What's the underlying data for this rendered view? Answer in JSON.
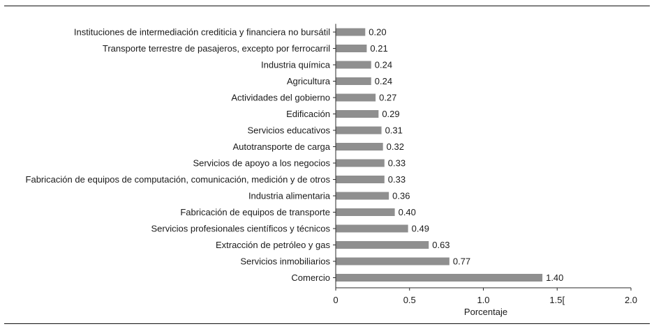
{
  "chart_data": {
    "type": "bar",
    "orientation": "horizontal",
    "categories": [
      "Instituciones de intermediación crediticia y financiera no bursátil",
      "Transporte terrestre de pasajeros, excepto por ferrocarril",
      "Industria química",
      "Agricultura",
      "Actividades del gobierno",
      "Edificación",
      "Servicios educativos",
      "Autotransporte de carga",
      "Servicios de apoyo a los negocios",
      "Fabricación de equipos de computación, comunicación, medición y de otros",
      "Industria alimentaria",
      "Fabricación de equipos de transporte",
      "Servicios profesionales científicos y técnicos",
      "Extracción de petróleo y gas",
      "Servicios inmobiliarios",
      "Comercio"
    ],
    "values": [
      0.2,
      0.21,
      0.24,
      0.24,
      0.27,
      0.29,
      0.31,
      0.32,
      0.33,
      0.33,
      0.36,
      0.4,
      0.49,
      0.63,
      0.77,
      1.4
    ],
    "value_labels": [
      "0.20",
      "0.21",
      "0.24",
      "0.24",
      "0.27",
      "0.29",
      "0.31",
      "0.32",
      "0.33",
      "0.33",
      "0.36",
      "0.40",
      "0.49",
      "0.63",
      "0.77",
      "1.40"
    ],
    "xlabel": "Porcentaje",
    "ylabel": "",
    "title": "",
    "xlim": [
      0,
      2.0
    ],
    "xticks": [
      0,
      0.5,
      1.0,
      1.5,
      2.0
    ],
    "xtick_labels": [
      "0",
      "0.5",
      "1.0",
      "1.5[",
      "2.0"
    ],
    "bar_color": "#8f8f8f",
    "grid": false
  }
}
